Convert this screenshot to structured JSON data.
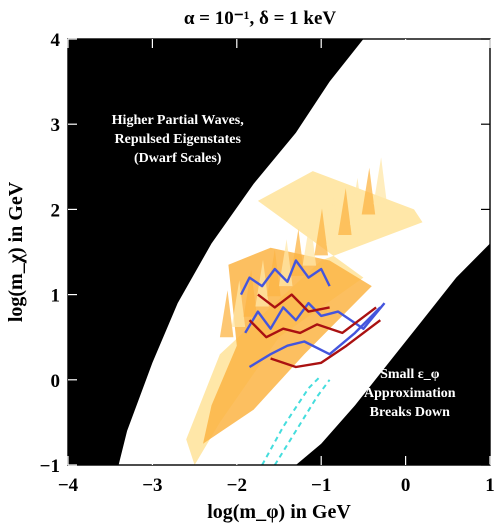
{
  "chart_data": {
    "type": "region-plot",
    "title": "α = 10⁻¹,  δ = 1 keV",
    "xlabel": "log(m_φ) in GeV",
    "ylabel": "log(m_χ) in GeV",
    "xlim": [
      -4,
      1
    ],
    "ylim": [
      -1,
      4
    ],
    "xticks": [
      "−4",
      "−3",
      "−2",
      "−1",
      "0",
      "1"
    ],
    "yticks": [
      "−1",
      "0",
      "1",
      "2",
      "3",
      "4"
    ],
    "annotations": [
      {
        "lines": [
          "Higher Partial Waves,",
          "Repulsed Eigenstates",
          "(Dwarf Scales)"
        ],
        "at": [
          -2.7,
          3.0
        ]
      },
      {
        "lines": [
          "Small ε_φ",
          "Approximation",
          "Breaks Down"
        ],
        "at": [
          0.05,
          0.02
        ]
      }
    ],
    "regions": {
      "black_upper_left": [
        [
          -4,
          4
        ],
        [
          -0.5,
          4
        ],
        [
          -0.9,
          3.5
        ],
        [
          -1.3,
          2.9
        ],
        [
          -1.8,
          2.3
        ],
        [
          -2.3,
          1.6
        ],
        [
          -2.7,
          0.9
        ],
        [
          -3.0,
          0.2
        ],
        [
          -3.3,
          -0.6
        ],
        [
          -3.4,
          -1
        ],
        [
          -4,
          -1
        ]
      ],
      "black_lower_right": [
        [
          1,
          1.6
        ],
        [
          0.6,
          1.2
        ],
        [
          0.2,
          0.7
        ],
        [
          -0.2,
          0.2
        ],
        [
          -0.6,
          -0.3
        ],
        [
          -1.0,
          -0.75
        ],
        [
          -1.3,
          -1
        ],
        [
          1,
          -1
        ]
      ],
      "light_band": [
        [
          -1.75,
          2.1
        ],
        [
          -1.1,
          2.45
        ],
        [
          0.1,
          2.0
        ],
        [
          0.2,
          1.85
        ],
        [
          -1.0,
          1.4
        ],
        [
          -2.2,
          0.3
        ],
        [
          -2.6,
          -0.7
        ],
        [
          -2.5,
          -1.0
        ],
        [
          -2.2,
          -0.5
        ],
        [
          -1.5,
          0.5
        ],
        [
          -0.5,
          1.2
        ]
      ],
      "orange_band": [
        [
          -2.1,
          1.35
        ],
        [
          -1.6,
          1.55
        ],
        [
          -0.9,
          1.4
        ],
        [
          -0.4,
          1.1
        ],
        [
          -1.2,
          0.3
        ],
        [
          -1.8,
          -0.35
        ],
        [
          -2.4,
          -0.75
        ],
        [
          -2.3,
          -0.3
        ],
        [
          -2.0,
          0.4
        ]
      ]
    },
    "series": [
      {
        "color": "#4455dd",
        "points": [
          [
            -1.95,
            1.0
          ],
          [
            -1.85,
            1.2
          ],
          [
            -1.7,
            1.1
          ],
          [
            -1.55,
            1.3
          ],
          [
            -1.4,
            1.15
          ],
          [
            -1.3,
            1.4
          ],
          [
            -1.15,
            1.2
          ],
          [
            -1.0,
            1.3
          ],
          [
            -0.9,
            1.1
          ]
        ]
      },
      {
        "color": "#4455dd",
        "points": [
          [
            -1.9,
            0.55
          ],
          [
            -1.75,
            0.8
          ],
          [
            -1.6,
            0.6
          ],
          [
            -1.45,
            0.85
          ],
          [
            -1.3,
            0.7
          ],
          [
            -1.15,
            0.9
          ],
          [
            -1.0,
            0.75
          ],
          [
            -0.8,
            0.8
          ],
          [
            -0.5,
            0.6
          ],
          [
            -0.25,
            0.9
          ]
        ]
      },
      {
        "color": "#4455dd",
        "points": [
          [
            -1.85,
            0.15
          ],
          [
            -1.6,
            0.3
          ],
          [
            -1.4,
            0.4
          ],
          [
            -1.2,
            0.45
          ],
          [
            -0.9,
            0.3
          ],
          [
            -0.6,
            0.55
          ],
          [
            -0.3,
            0.85
          ]
        ]
      },
      {
        "color": "#aa1111",
        "points": [
          [
            -1.75,
            1.0
          ],
          [
            -1.55,
            0.85
          ],
          [
            -1.35,
            1.0
          ],
          [
            -1.15,
            0.8
          ],
          [
            -0.9,
            0.85
          ]
        ]
      },
      {
        "color": "#aa1111",
        "points": [
          [
            -1.85,
            0.7
          ],
          [
            -1.65,
            0.5
          ],
          [
            -1.45,
            0.6
          ],
          [
            -1.25,
            0.55
          ],
          [
            -1.05,
            0.65
          ],
          [
            -0.75,
            0.55
          ],
          [
            -0.35,
            0.85
          ]
        ]
      },
      {
        "color": "#aa1111",
        "points": [
          [
            -1.6,
            0.25
          ],
          [
            -1.3,
            0.15
          ],
          [
            -1.0,
            0.2
          ],
          [
            -0.7,
            0.4
          ],
          [
            -0.3,
            0.7
          ]
        ]
      },
      {
        "color": "#44dddd",
        "points": [
          [
            -1.7,
            -1.0
          ],
          [
            -1.45,
            -0.55
          ],
          [
            -1.15,
            -0.1
          ],
          [
            -1.0,
            0.05
          ]
        ]
      },
      {
        "color": "#44dddd",
        "points": [
          [
            -1.55,
            -1.0
          ],
          [
            -1.3,
            -0.6
          ],
          [
            -1.05,
            -0.2
          ],
          [
            -0.9,
            0.0
          ]
        ]
      }
    ],
    "colors": {
      "black": "#000000",
      "light": "#ffe7a8",
      "orange": "#fcb444",
      "blue": "#4455dd",
      "red": "#aa1111",
      "cyan": "#44dddd"
    }
  }
}
